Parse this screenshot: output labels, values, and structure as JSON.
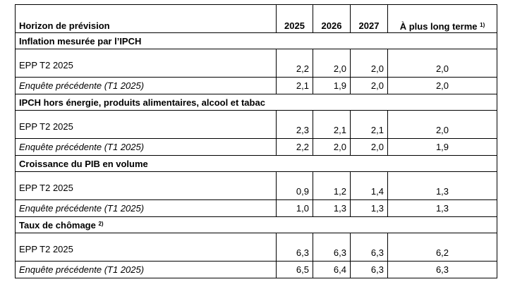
{
  "table": {
    "headers": {
      "label": "Horizon de prévision",
      "years": [
        "2025",
        "2026",
        "2027"
      ],
      "longer_term": "À plus long terme",
      "longer_term_note": "1)"
    },
    "sections": [
      {
        "title": "Inflation mesurée par l’IPCH",
        "note": "",
        "rows": [
          {
            "label": "EPP T2 2025",
            "values": [
              "2,2",
              "2,0",
              "2,0",
              "2,0"
            ]
          },
          {
            "label": "Enquête précédente (T1 2025)",
            "values": [
              "2,1",
              "1,9",
              "2,0",
              "2,0"
            ]
          }
        ]
      },
      {
        "title": "IPCH hors énergie, produits alimentaires, alcool et tabac",
        "note": "",
        "rows": [
          {
            "label": "EPP T2 2025",
            "values": [
              "2,3",
              "2,1",
              "2,1",
              "2,0"
            ]
          },
          {
            "label": "Enquête précédente (T1 2025)",
            "values": [
              "2,2",
              "2,0",
              "2,0",
              "1,9"
            ]
          }
        ]
      },
      {
        "title": "Croissance du PIB en volume",
        "note": "",
        "rows": [
          {
            "label": "EPP T2 2025",
            "values": [
              "0,9",
              "1,2",
              "1,4",
              "1,3"
            ]
          },
          {
            "label": "Enquête précédente (T1 2025)",
            "values": [
              "1,0",
              "1,3",
              "1,3",
              "1,3"
            ]
          }
        ]
      },
      {
        "title": "Taux de chômage",
        "note": "2)",
        "rows": [
          {
            "label": "EPP T2 2025",
            "values": [
              "6,3",
              "6,3",
              "6,3",
              "6,2"
            ]
          },
          {
            "label": "Enquête précédente (T1 2025)",
            "values": [
              "6,5",
              "6,4",
              "6,3",
              "6,3"
            ]
          }
        ]
      }
    ]
  }
}
